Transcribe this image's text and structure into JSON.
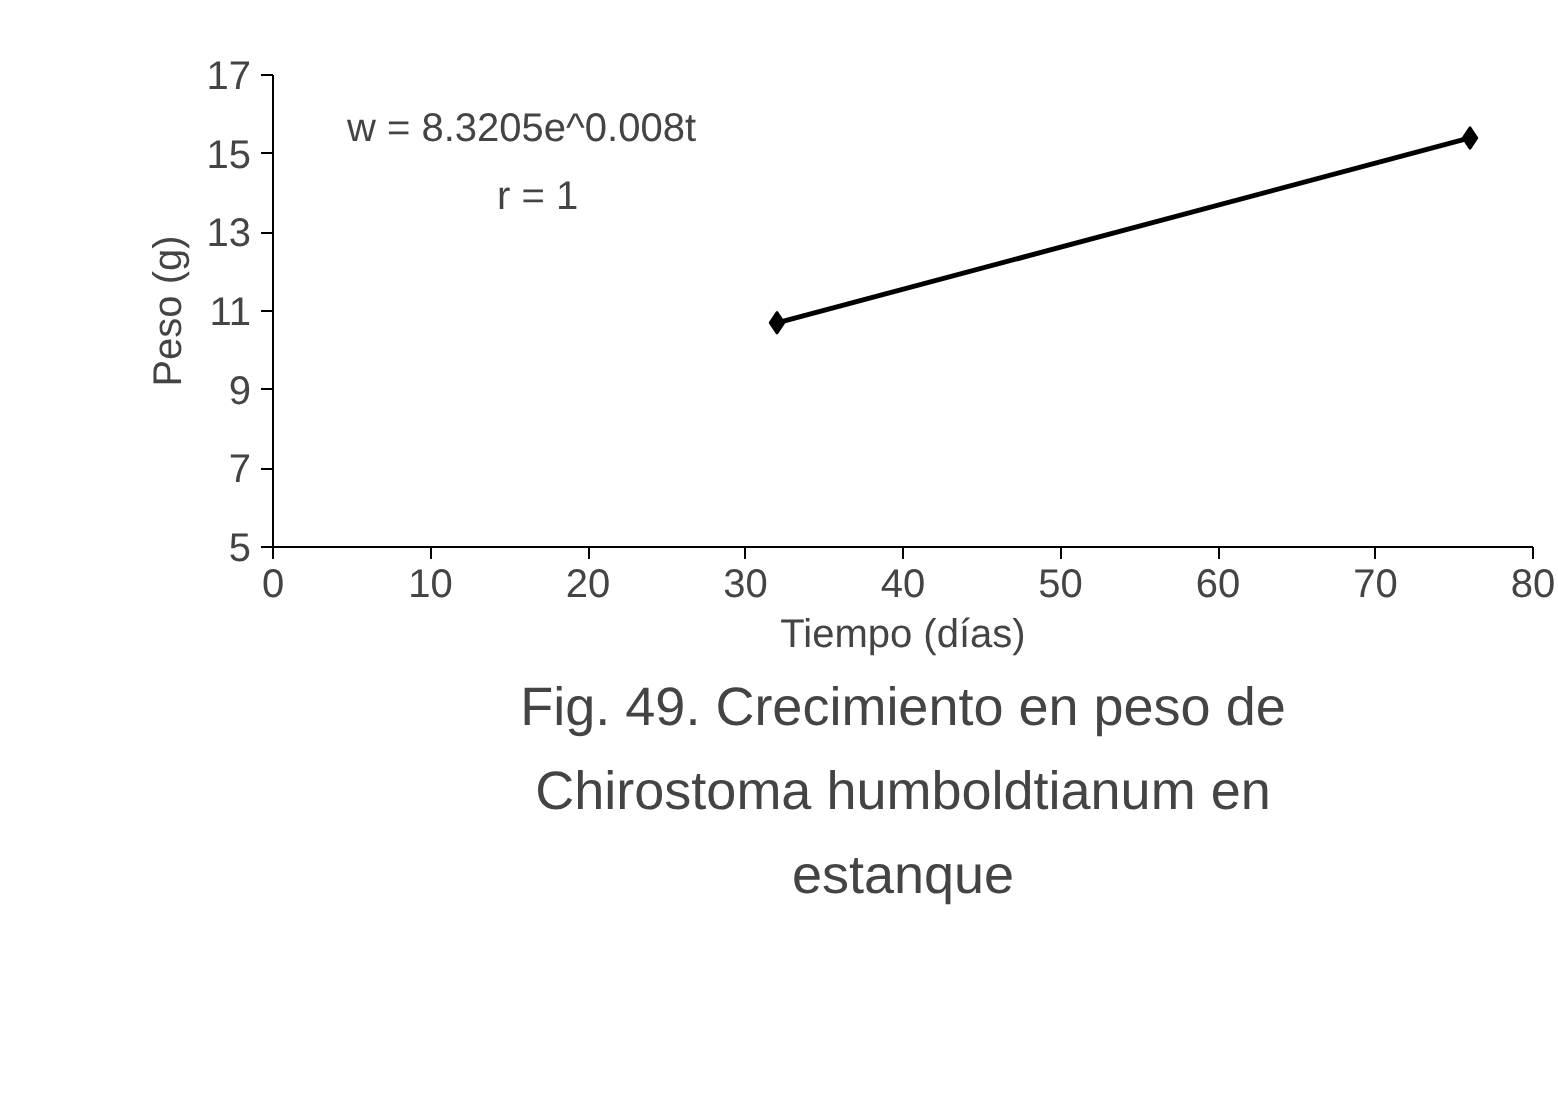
{
  "chart_data": {
    "type": "line",
    "xlabel": "Tiempo (días)",
    "ylabel": "Peso (g)",
    "x": [
      32,
      76
    ],
    "series": [
      {
        "color": "#000000",
        "values": [
          10.7,
          15.4
        ]
      }
    ],
    "marker": "diamond",
    "line_style": "solid",
    "grid": false,
    "xlim": [
      0,
      80
    ],
    "xticks": [
      0,
      10,
      20,
      30,
      40,
      50,
      60,
      70,
      80
    ],
    "ylim": [
      5,
      17
    ],
    "yticks": [
      5,
      7,
      9,
      11,
      13,
      15,
      17
    ],
    "annotations": [
      "w = 8.3205e^0.008t",
      "r = 1",
      "Fig. 49. Crecimiento en peso de\nChirostoma humboldtianum en\nestanque"
    ]
  }
}
